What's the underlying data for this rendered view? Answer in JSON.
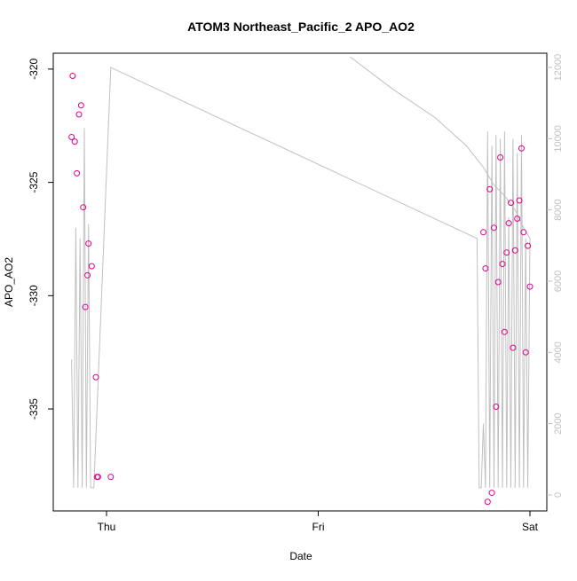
{
  "chart_data": {
    "type": "scatter",
    "title": "ATOM3 Northeast_Pacific_2 APO_AO2",
    "xlabel": "Date",
    "ylabel": "APO_AO2",
    "x_ticks": [
      "Thu",
      "Fri",
      "Sat"
    ],
    "y_ticks": [
      -320,
      -325,
      -330,
      -335
    ],
    "y_right_ticks": [
      0,
      2000,
      4000,
      6000,
      8000,
      10000,
      12000
    ],
    "ylim": [
      -339.5,
      -319.3
    ],
    "y_right_lim": [
      -450,
      12400
    ],
    "grid": false,
    "colors": {
      "points": "#e0008c",
      "line": "#c0c0c0",
      "axis": "#000000",
      "right_axis": "#c0c0c0"
    },
    "series": [
      {
        "type": "points",
        "axis": "left",
        "x": [
          -0.165,
          -0.16,
          -0.15,
          -0.14,
          -0.13,
          -0.12,
          -0.11,
          -0.1,
          -0.09,
          -0.085,
          -0.07,
          -0.05,
          -0.045,
          -0.04,
          0.02,
          1.78,
          1.79,
          1.8,
          1.81,
          1.82,
          1.83,
          1.84,
          1.85,
          1.86,
          1.87,
          1.88,
          1.89,
          1.9,
          1.91,
          1.92,
          1.93,
          1.94,
          1.95,
          1.96,
          1.97,
          1.98,
          1.99,
          2.0
        ],
        "y": [
          -323.0,
          -320.3,
          -323.2,
          -324.6,
          -322.0,
          -321.6,
          -326.1,
          -330.5,
          -329.1,
          -327.7,
          -328.7,
          -333.6,
          -338.0,
          -338.0,
          -338.0,
          -327.2,
          -328.8,
          -339.1,
          -325.3,
          -338.7,
          -327.0,
          -334.9,
          -329.4,
          -323.9,
          -328.6,
          -331.6,
          -328.1,
          -326.8,
          -325.9,
          -332.3,
          -328.0,
          -326.6,
          -325.8,
          -323.5,
          -327.2,
          -332.5,
          -327.8,
          -329.6
        ]
      },
      {
        "type": "line",
        "axis": "right",
        "x": [
          -0.165,
          -0.155,
          -0.145,
          -0.135,
          -0.125,
          -0.115,
          -0.105,
          -0.095,
          -0.085,
          -0.075,
          -0.06,
          0.02,
          0.02,
          1.75,
          1.76,
          1.77,
          1.78,
          1.79,
          1.8,
          1.81,
          1.82,
          1.83,
          1.84,
          1.85,
          1.86,
          1.87,
          1.88,
          1.89,
          1.9,
          1.91,
          1.92,
          1.93,
          1.94,
          1.95,
          1.96,
          1.97,
          1.98,
          1.99,
          2.0,
          1.97,
          1.93,
          1.88,
          1.83,
          1.78,
          1.7,
          1.55,
          1.35,
          1.15
        ],
        "y": [
          3800,
          200,
          7500,
          200,
          7200,
          200,
          10300,
          200,
          7600,
          200,
          200,
          12000,
          12000,
          7200,
          200,
          200,
          2000,
          200,
          10200,
          200,
          9800,
          200,
          10100,
          200,
          10000,
          200,
          10200,
          200,
          7800,
          200,
          10000,
          200,
          9600,
          200,
          10100,
          200,
          7200,
          200,
          7200,
          7500,
          8000,
          8400,
          8700,
          9200,
          9800,
          10600,
          11400,
          12300
        ]
      }
    ]
  }
}
